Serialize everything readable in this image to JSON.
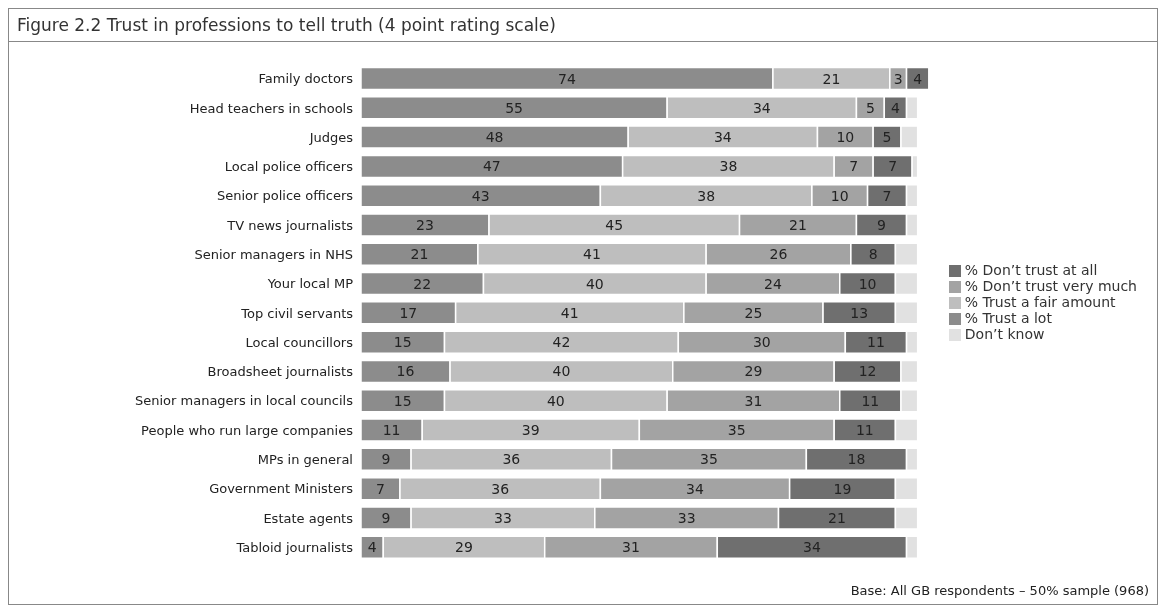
{
  "chart_data": {
    "type": "bar",
    "orientation": "horizontal",
    "stacked": true,
    "title": "Figure 2.2 Trust in professions to tell truth (4 point rating scale)",
    "categories": [
      "Family doctors",
      "Head teachers in schools",
      "Judges",
      "Local police officers",
      "Senior police officers",
      "TV news journalists",
      "Senior managers in NHS",
      "Your local MP",
      "Top civil servants",
      "Local councillors",
      "Broadsheet journalists",
      "Senior managers in local councils",
      "People who run large companies",
      "MPs in general",
      "Government Ministers",
      "Estate agents",
      "Tabloid journalists"
    ],
    "series": [
      {
        "name": "% Trust a lot",
        "color": "#8c8c8c",
        "values": [
          74,
          55,
          48,
          47,
          43,
          23,
          21,
          22,
          17,
          15,
          16,
          15,
          11,
          9,
          7,
          9,
          4
        ],
        "value_labels": [
          "74",
          "55",
          "48",
          "47",
          "43",
          "23",
          "21",
          "22",
          "17",
          "15",
          "16",
          "15",
          "11",
          "9",
          "7",
          "9",
          "4"
        ]
      },
      {
        "name": "% Trust a fair amount",
        "color": "#bebebe",
        "values": [
          21,
          34,
          34,
          38,
          38,
          45,
          41,
          40,
          41,
          42,
          40,
          40,
          39,
          36,
          36,
          33,
          29
        ],
        "value_labels": [
          "21",
          "34",
          "34",
          "38",
          "38",
          "45",
          "41",
          "40",
          "41",
          "42",
          "40",
          "40",
          "39",
          "36",
          "36",
          "33",
          "29"
        ]
      },
      {
        "name": "% Don’t trust very much",
        "color": "#a3a3a3",
        "values": [
          3,
          5,
          10,
          7,
          10,
          21,
          26,
          24,
          25,
          30,
          29,
          31,
          35,
          35,
          34,
          33,
          31
        ],
        "value_labels": [
          "3",
          "5",
          "10",
          "7",
          "10",
          "21",
          "26",
          "24",
          "25",
          "30",
          "29",
          "31",
          "35",
          "35",
          "34",
          "33",
          "31"
        ]
      },
      {
        "name": "% Don’t trust at all",
        "color": "#6f6f6f",
        "values": [
          4,
          4,
          5,
          7,
          7,
          9,
          8,
          10,
          13,
          11,
          12,
          11,
          11,
          18,
          19,
          21,
          34
        ],
        "value_labels": [
          "4",
          "4",
          "5",
          "7",
          "7",
          "9",
          "8",
          "10",
          "13",
          "11",
          "12",
          "11",
          "11",
          "18",
          "19",
          "21",
          "34"
        ]
      },
      {
        "name": "Don’t know",
        "color": "#e1e1e1",
        "values": [
          0,
          2,
          3,
          1,
          2,
          2,
          4,
          4,
          4,
          2,
          3,
          3,
          4,
          2,
          4,
          4,
          2
        ]
      }
    ],
    "legend": "right",
    "annotations": [
      "Base: All GB respondents – 50% sample (968)"
    ]
  }
}
